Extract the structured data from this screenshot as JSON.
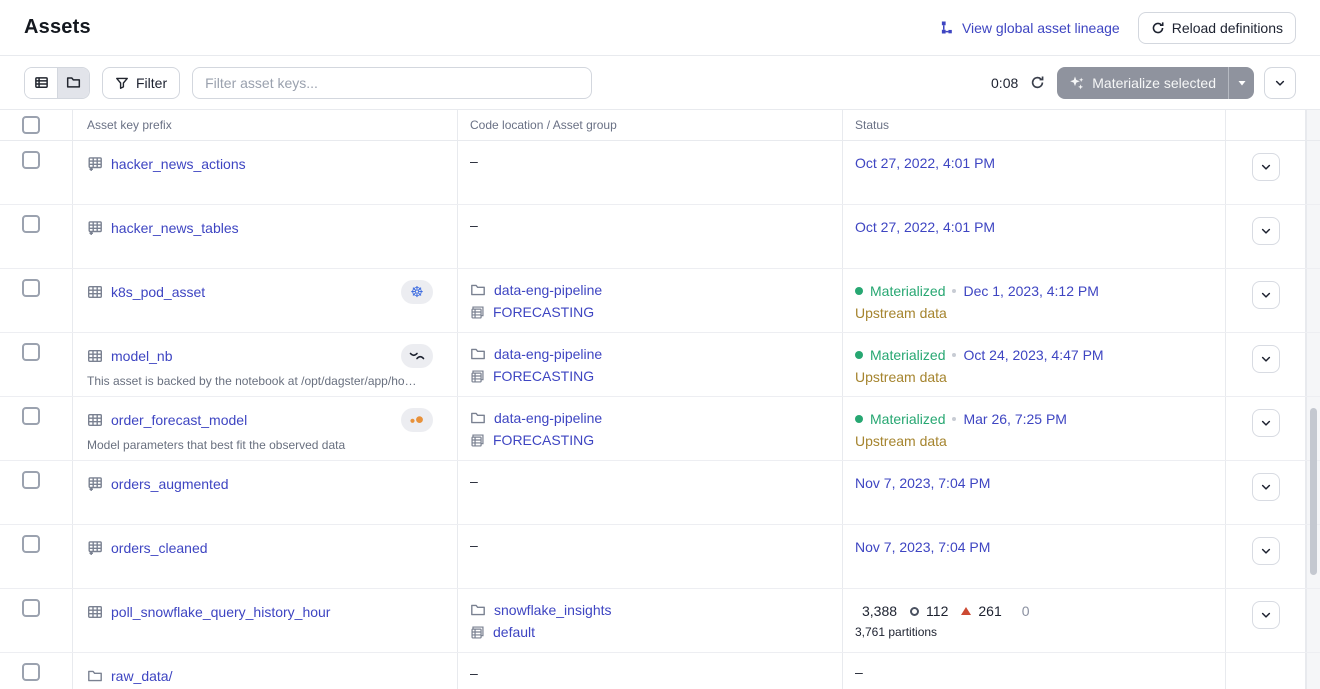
{
  "colors": {
    "link": "#3E45C2",
    "green": "#27A772",
    "amber": "#A5842E",
    "text-dark": "#1D2230",
    "text-gray": "#6A7185",
    "border": "#E8EAEE",
    "k8s-blue": "#3D6CE0",
    "orange": "#E8913A",
    "triangle-red": "#CC4A33",
    "btn-disabled": "#8F939E"
  },
  "header": {
    "title": "Assets",
    "view_lineage_label": "View global asset lineage",
    "reload_label": "Reload definitions"
  },
  "toolbar": {
    "filter_label": "Filter",
    "search_placeholder": "Filter asset keys...",
    "countdown": "0:08",
    "materialize_label": "Materialize selected"
  },
  "table": {
    "headers": {
      "asset_key": "Asset key prefix",
      "location": "Code location / Asset group",
      "status": "Status"
    },
    "dash": "–",
    "rows": [
      {
        "name": "hacker_news_actions",
        "icon": "table-plus",
        "badge": null,
        "description": null,
        "location": null,
        "status": {
          "kind": "timestamp",
          "timestamp": "Oct 27, 2022, 4:01 PM"
        },
        "has_action": true
      },
      {
        "name": "hacker_news_tables",
        "icon": "table-plus",
        "badge": null,
        "description": null,
        "location": null,
        "status": {
          "kind": "timestamp",
          "timestamp": "Oct 27, 2022, 4:01 PM"
        },
        "has_action": true
      },
      {
        "name": "k8s_pod_asset",
        "icon": "table",
        "badge": "kubernetes",
        "description": null,
        "location": {
          "code_location": "data-eng-pipeline",
          "group": "FORECASTING"
        },
        "status": {
          "kind": "materialized",
          "label": "Materialized",
          "timestamp": "Dec 1, 2023, 4:12 PM",
          "sub": "Upstream data"
        },
        "has_action": true
      },
      {
        "name": "model_nb",
        "icon": "table",
        "badge": "noteable",
        "description": "This asset is backed by the notebook at /opt/dagster/app/ho…",
        "location": {
          "code_location": "data-eng-pipeline",
          "group": "FORECASTING"
        },
        "status": {
          "kind": "materialized",
          "label": "Materialized",
          "timestamp": "Oct 24, 2023, 4:47 PM",
          "sub": "Upstream data"
        },
        "has_action": true
      },
      {
        "name": "order_forecast_model",
        "icon": "table",
        "badge": "orange-dots",
        "description": "Model parameters that best fit the observed data",
        "location": {
          "code_location": "data-eng-pipeline",
          "group": "FORECASTING"
        },
        "status": {
          "kind": "materialized",
          "label": "Materialized",
          "timestamp": "Mar 26, 7:25 PM",
          "sub": "Upstream data"
        },
        "has_action": true
      },
      {
        "name": "orders_augmented",
        "icon": "table-plus",
        "badge": null,
        "description": null,
        "location": null,
        "status": {
          "kind": "timestamp",
          "timestamp": "Nov 7, 2023, 7:04 PM"
        },
        "has_action": true
      },
      {
        "name": "orders_cleaned",
        "icon": "table-plus",
        "badge": null,
        "description": null,
        "location": null,
        "status": {
          "kind": "timestamp",
          "timestamp": "Nov 7, 2023, 7:04 PM"
        },
        "has_action": true
      },
      {
        "name": "poll_snowflake_query_history_hour",
        "icon": "table",
        "badge": null,
        "description": null,
        "location": {
          "code_location": "snowflake_insights",
          "group": "default"
        },
        "status": {
          "kind": "partitions",
          "counts": [
            {
              "marker": "dot-green",
              "value": "3,388",
              "muted": false
            },
            {
              "marker": "circle-hollow",
              "value": "112",
              "muted": false
            },
            {
              "marker": "triangle-red",
              "value": "261",
              "muted": false
            },
            {
              "marker": "dot-gray",
              "value": "0",
              "muted": true
            }
          ],
          "sub": "3,761 partitions"
        },
        "has_action": true
      },
      {
        "name": "raw_data/",
        "icon": "folder",
        "badge": null,
        "description": null,
        "location": null,
        "status": {
          "kind": "dash"
        },
        "has_action": false
      }
    ]
  }
}
